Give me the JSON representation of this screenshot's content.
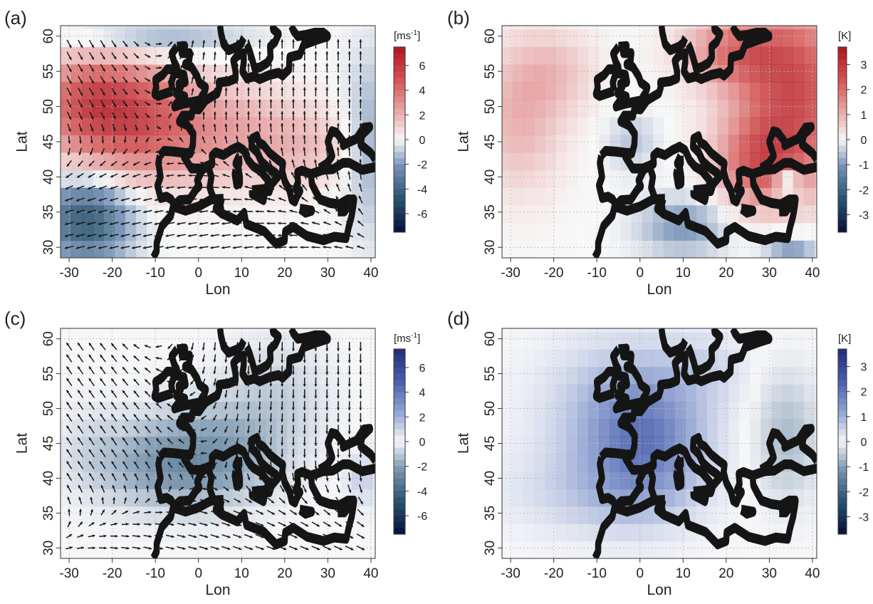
{
  "chart_data": [
    {
      "type": "heatmap",
      "panel_label": "(a)",
      "field": "wind",
      "xlabel": "Lon",
      "ylabel": "Lat",
      "xlim": [
        -32,
        41
      ],
      "ylim": [
        28.5,
        61.5
      ],
      "xticks": [
        -30,
        -20,
        -10,
        0,
        10,
        20,
        30,
        40
      ],
      "xtick_labels": [
        "-30",
        "-20",
        "-10",
        "0",
        "10",
        "20",
        "30",
        "40"
      ],
      "yticks": [
        30,
        35,
        40,
        45,
        50,
        55,
        60
      ],
      "ytick_labels": [
        "30",
        "35",
        "40",
        "45",
        "50",
        "55",
        "60"
      ],
      "colorbar_unit": "[ms",
      "colorbar_unit_exp": "-1",
      "colorbar_unit_end": "]",
      "colorbar_ticks": [
        6,
        4,
        2,
        0,
        -2,
        -4,
        -6
      ],
      "colorbar_tick_labels": [
        "6",
        "4",
        "2",
        "0",
        "-2",
        "-4",
        "-6"
      ],
      "colorbar_range": [
        -7.5,
        7.5
      ],
      "colormap": "blue-white-red",
      "grid": true,
      "vectors": true,
      "blobs": [
        {
          "lon": -17,
          "lat": 48,
          "value": 5.5,
          "rlon": 18,
          "rlat": 8
        },
        {
          "lon": -25,
          "lat": 52,
          "value": 3,
          "rlon": 12,
          "rlat": 6
        },
        {
          "lon": 8,
          "lat": 46,
          "value": 2.2,
          "rlon": 20,
          "rlat": 7
        },
        {
          "lon": 25,
          "lat": 44,
          "value": 1.2,
          "rlon": 12,
          "rlat": 5
        },
        {
          "lon": -26,
          "lat": 34,
          "value": -5.5,
          "rlon": 10,
          "rlat": 6
        },
        {
          "lon": -10,
          "lat": 60,
          "value": -2,
          "rlon": 20,
          "rlat": 3
        },
        {
          "lon": 40,
          "lat": 45,
          "value": -2,
          "rlon": 6,
          "rlat": 12
        }
      ],
      "flow": [
        {
          "lon": -25,
          "lat": 55,
          "u": 0.5,
          "v": -1,
          "rlon": 20,
          "rlat": 12
        },
        {
          "lon": 10,
          "lat": 55,
          "u": 0,
          "v": 1,
          "rlon": 25,
          "rlat": 12
        },
        {
          "lon": -15,
          "lat": 36,
          "u": -1,
          "v": -0.2,
          "rlon": 25,
          "rlat": 8
        }
      ]
    },
    {
      "type": "heatmap",
      "panel_label": "(b)",
      "field": "temperature",
      "xlabel": "Lon",
      "ylabel": "Lat",
      "xlim": [
        -32,
        41
      ],
      "ylim": [
        28.5,
        61.5
      ],
      "xticks": [
        -30,
        -20,
        -10,
        0,
        10,
        20,
        30,
        40
      ],
      "xtick_labels": [
        "-30",
        "-20",
        "-10",
        "0",
        "10",
        "20",
        "30",
        "40"
      ],
      "yticks": [
        30,
        35,
        40,
        45,
        50,
        55,
        60
      ],
      "ytick_labels": [
        "30",
        "35",
        "40",
        "45",
        "50",
        "55",
        "60"
      ],
      "colorbar_unit": "[K]",
      "colorbar_unit_exp": "",
      "colorbar_unit_end": "",
      "colorbar_ticks": [
        3,
        2,
        1,
        0,
        -1,
        -2,
        -3
      ],
      "colorbar_tick_labels": [
        "3",
        "2",
        "1",
        "0",
        "-1",
        "-2",
        "-3"
      ],
      "colorbar_range": [
        -3.7,
        3.7
      ],
      "colormap": "blue-white-red",
      "grid": true,
      "vectors": false,
      "blobs": [
        {
          "lon": 36,
          "lat": 52,
          "value": 3,
          "rlon": 14,
          "rlat": 12
        },
        {
          "lon": 22,
          "lat": 58,
          "value": 1.8,
          "rlon": 12,
          "rlat": 5
        },
        {
          "lon": 28,
          "lat": 42,
          "value": 2.2,
          "rlon": 10,
          "rlat": 6
        },
        {
          "lon": -28,
          "lat": 48,
          "value": 1.1,
          "rlon": 10,
          "rlat": 10
        },
        {
          "lon": -20,
          "lat": 55,
          "value": 0.8,
          "rlon": 10,
          "rlat": 6
        },
        {
          "lon": 10,
          "lat": 33,
          "value": -1.2,
          "rlon": 10,
          "rlat": 4
        },
        {
          "lon": 34,
          "lat": 39,
          "value": -2.4,
          "rlon": 3,
          "rlat": 2
        },
        {
          "lon": 35,
          "lat": 30,
          "value": -1.2,
          "rlon": 6,
          "rlat": 2
        },
        {
          "lon": -2,
          "lat": 45,
          "value": -0.6,
          "rlon": 6,
          "rlat": 4
        }
      ],
      "flow": []
    },
    {
      "type": "heatmap",
      "panel_label": "(c)",
      "field": "wind",
      "xlabel": "Lon",
      "ylabel": "Lat",
      "xlim": [
        -32,
        41
      ],
      "ylim": [
        28.5,
        61.5
      ],
      "xticks": [
        -30,
        -20,
        -10,
        0,
        10,
        20,
        30,
        40
      ],
      "xtick_labels": [
        "-30",
        "-20",
        "-10",
        "0",
        "10",
        "20",
        "30",
        "40"
      ],
      "yticks": [
        30,
        35,
        40,
        45,
        50,
        55,
        60
      ],
      "ytick_labels": [
        "30",
        "35",
        "40",
        "45",
        "50",
        "55",
        "60"
      ],
      "colorbar_unit": "[ms",
      "colorbar_unit_exp": "-1",
      "colorbar_unit_end": "]",
      "colorbar_ticks": [
        6,
        4,
        2,
        0,
        -2,
        -4,
        -6
      ],
      "colorbar_tick_labels": [
        "6",
        "4",
        "2",
        "0",
        "-2",
        "-4",
        "-6"
      ],
      "colorbar_range": [
        -7.5,
        7.5
      ],
      "colormap": "dark-blue-white-blue",
      "grid": true,
      "vectors": true,
      "blobs": [
        {
          "lon": -8,
          "lat": 42,
          "value": -2.4,
          "rlon": 16,
          "rlat": 6
        },
        {
          "lon": 5,
          "lat": 44,
          "value": -1.8,
          "rlon": 15,
          "rlat": 7
        },
        {
          "lon": 18,
          "lat": 52,
          "value": -1,
          "rlon": 12,
          "rlat": 8
        },
        {
          "lon": 38,
          "lat": 40,
          "value": 1.3,
          "rlon": 4,
          "rlat": 4
        },
        {
          "lon": -25,
          "lat": 45,
          "value": -0.5,
          "rlon": 6,
          "rlat": 6
        }
      ],
      "flow": [
        {
          "lon": -15,
          "lat": 46,
          "u": -0.6,
          "v": 0.9,
          "rlon": 20,
          "rlat": 10
        },
        {
          "lon": 12,
          "lat": 52,
          "u": 0,
          "v": -1,
          "rlon": 18,
          "rlat": 12
        },
        {
          "lon": 0,
          "lat": 33,
          "u": 1,
          "v": -0.3,
          "rlon": 20,
          "rlat": 6
        }
      ]
    },
    {
      "type": "heatmap",
      "panel_label": "(d)",
      "field": "temperature",
      "xlabel": "Lon",
      "ylabel": "Lat",
      "xlim": [
        -32,
        41
      ],
      "ylim": [
        28.5,
        61.5
      ],
      "xticks": [
        -30,
        -20,
        -10,
        0,
        10,
        20,
        30,
        40
      ],
      "xtick_labels": [
        "-30",
        "-20",
        "-10",
        "0",
        "10",
        "20",
        "30",
        "40"
      ],
      "yticks": [
        30,
        35,
        40,
        45,
        50,
        55,
        60
      ],
      "ytick_labels": [
        "30",
        "35",
        "40",
        "45",
        "50",
        "55",
        "60"
      ],
      "colorbar_unit": "[K]",
      "colorbar_unit_exp": "",
      "colorbar_unit_end": "",
      "colorbar_ticks": [
        3,
        2,
        1,
        0,
        -1,
        -2,
        -3
      ],
      "colorbar_tick_labels": [
        "3",
        "2",
        "1",
        "0",
        "-1",
        "-2",
        "-3"
      ],
      "colorbar_range": [
        -3.7,
        3.7
      ],
      "colormap": "dark-blue-white-blue",
      "grid": true,
      "vectors": false,
      "blobs": [
        {
          "lon": 1,
          "lat": 45,
          "value": 1.8,
          "rlon": 13,
          "rlat": 9
        },
        {
          "lon": -4,
          "lat": 50,
          "value": 0.9,
          "rlon": 18,
          "rlat": 10
        },
        {
          "lon": -10,
          "lat": 38,
          "value": 0.6,
          "rlon": 20,
          "rlat": 6
        },
        {
          "lon": 34,
          "lat": 46,
          "value": -0.8,
          "rlon": 7,
          "rlat": 9
        },
        {
          "lon": 15,
          "lat": 56,
          "value": 0.4,
          "rlon": 10,
          "rlat": 5
        }
      ],
      "flow": []
    }
  ]
}
